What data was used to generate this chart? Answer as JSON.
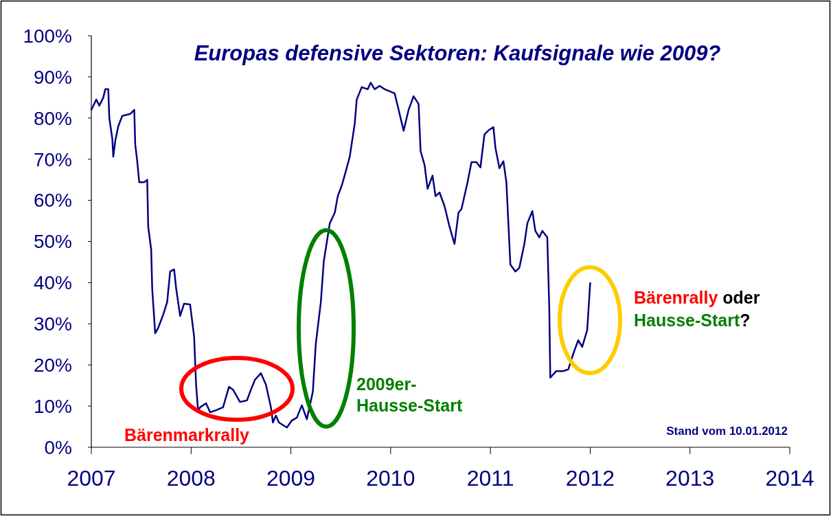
{
  "chart_data": {
    "type": "line",
    "title": "Europas defensive Sektoren: Kaufsignale wie 2009?",
    "series": [
      {
        "color": "#000080",
        "x": [
          2007.0,
          2007.05,
          2007.08,
          2007.12,
          2007.14,
          2007.17,
          2007.18,
          2007.21,
          2007.22,
          2007.24,
          2007.27,
          2007.31,
          2007.39,
          2007.43,
          2007.44,
          2007.46,
          2007.48,
          2007.53,
          2007.56,
          2007.57,
          2007.6,
          2007.61,
          2007.64,
          2007.67,
          2007.72,
          2007.76,
          2007.79,
          2007.83,
          2007.85,
          2007.89,
          2007.93,
          2007.99,
          2008.03,
          2008.05,
          2008.07,
          2008.09,
          2008.15,
          2008.19,
          2008.25,
          2008.32,
          2008.38,
          2008.42,
          2008.49,
          2008.56,
          2008.6,
          2008.64,
          2008.7,
          2008.75,
          2008.8,
          2008.82,
          2008.85,
          2008.88,
          2008.96,
          2009.01,
          2009.06,
          2009.11,
          2009.16,
          2009.22,
          2009.25,
          2009.3,
          2009.33,
          2009.39,
          2009.44,
          2009.47,
          2009.51,
          2009.55,
          2009.59,
          2009.64,
          2009.66,
          2009.71,
          2009.77,
          2009.8,
          2009.84,
          2009.89,
          2009.94,
          2010.04,
          2010.08,
          2010.13,
          2010.18,
          2010.23,
          2010.28,
          2010.3,
          2010.34,
          2010.37,
          2010.42,
          2010.45,
          2010.49,
          2010.54,
          2010.59,
          2010.64,
          2010.68,
          2010.71,
          2010.77,
          2010.81,
          2010.86,
          2010.9,
          2010.94,
          2010.98,
          2011.03,
          2011.05,
          2011.09,
          2011.13,
          2011.16,
          2011.2,
          2011.25,
          2011.29,
          2011.34,
          2011.37,
          2011.42,
          2011.45,
          2011.49,
          2011.52,
          2011.57,
          2011.59,
          2011.6,
          2011.66,
          2011.73,
          2011.78,
          2011.83,
          2011.88,
          2011.92,
          2011.97,
          2012.0
        ],
        "values": [
          82,
          84.5,
          83,
          85,
          87,
          87,
          80,
          75,
          70.6,
          74.5,
          78,
          80.5,
          81,
          82,
          73.6,
          69.5,
          64.4,
          64.4,
          65,
          53.6,
          48,
          38.6,
          27.7,
          29,
          32.2,
          35.3,
          42.7,
          43.2,
          38.6,
          31.9,
          34.9,
          34.7,
          26.9,
          15.2,
          8.8,
          9.7,
          10.7,
          8.5,
          9,
          9.7,
          14.7,
          14,
          11,
          11.4,
          14,
          16.4,
          18,
          15.2,
          9.7,
          6,
          7.7,
          6,
          4.8,
          6.5,
          7.2,
          10.2,
          6.8,
          13.5,
          25.2,
          35.2,
          45.2,
          54.4,
          57,
          61,
          63.6,
          67,
          70.6,
          78.6,
          84.5,
          87.5,
          87,
          88.6,
          87,
          87.8,
          87,
          86,
          82,
          76.9,
          82,
          85.3,
          83.4,
          72,
          68.6,
          62.8,
          66,
          61,
          61.9,
          58.6,
          53.6,
          49.4,
          57,
          57.9,
          64.3,
          69.3,
          69.3,
          68,
          76,
          77,
          77.8,
          72.8,
          67.8,
          69.5,
          64.4,
          44.4,
          42.7,
          43.6,
          49.4,
          54.4,
          57.4,
          52.6,
          51,
          52.6,
          51,
          33.6,
          16.9,
          18.5,
          18.5,
          18.9,
          22.7,
          26,
          24.4,
          28.5,
          39.9
        ]
      }
    ],
    "xlim": [
      2007,
      2014
    ],
    "xticks": [
      2007,
      2008,
      2009,
      2010,
      2011,
      2012,
      2013,
      2014
    ],
    "ylim": [
      0,
      100
    ],
    "yticks": [
      {
        "value": 0,
        "label": "0%"
      },
      {
        "value": 10,
        "label": "10%"
      },
      {
        "value": 20,
        "label": "20%"
      },
      {
        "value": 30,
        "label": "30%"
      },
      {
        "value": 40,
        "label": "40%"
      },
      {
        "value": 50,
        "label": "50%"
      },
      {
        "value": 60,
        "label": "60%"
      },
      {
        "value": 70,
        "label": "70%"
      },
      {
        "value": 80,
        "label": "80%"
      },
      {
        "value": 90,
        "label": "90%"
      },
      {
        "value": 100,
        "label": "100%"
      }
    ],
    "grid": false,
    "marker": "none",
    "line_style": "solid",
    "annotations": [
      "Bärenmarkrally",
      "2009er-Hausse-Start",
      "Bärenrally oder Hausse-Start?",
      "Stand vom 10.01.2012"
    ]
  }
}
